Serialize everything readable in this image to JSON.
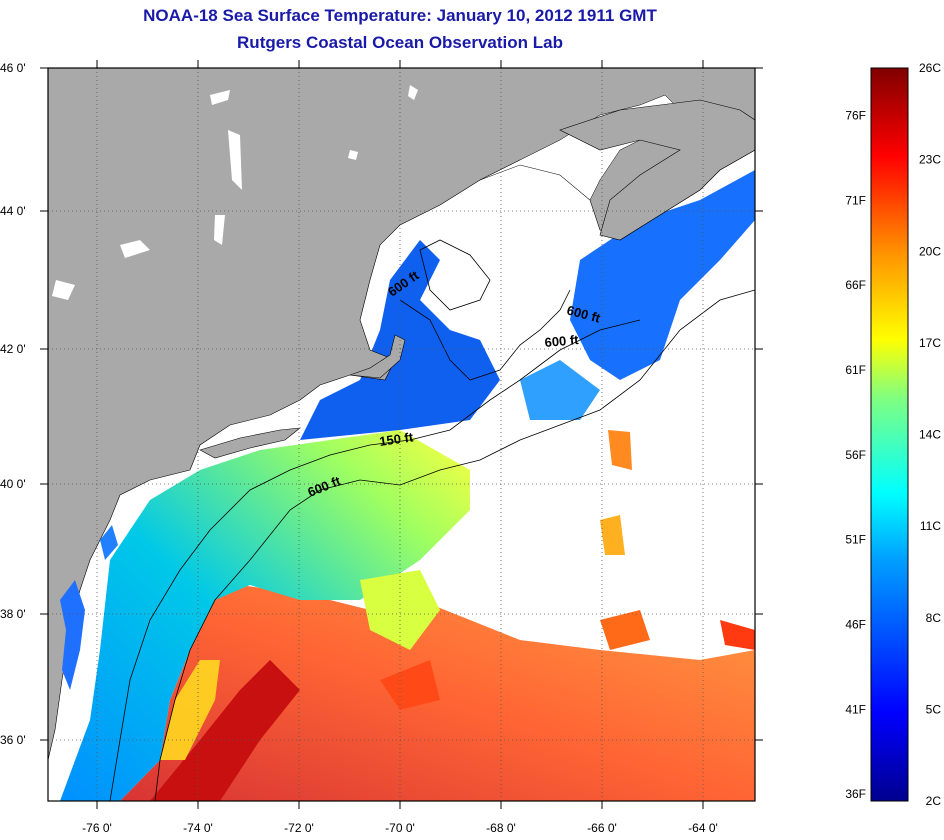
{
  "title": "NOAA-18 Sea Surface Temperature:  January 10, 2012 1911 GMT",
  "subtitle": "Rutgers Coastal Ocean Observation Lab",
  "latitude_labels": [
    "46 0'",
    "44 0'",
    "42 0'",
    "40 0'",
    "38 0'",
    "36 0'"
  ],
  "longitude_labels": [
    "-76 0'",
    "-74 0'",
    "-72 0'",
    "-70 0'",
    "-68 0'",
    "-66 0'",
    "-64 0'"
  ],
  "contour_labels": [
    {
      "text": "600 ft",
      "depth_ft": 600
    },
    {
      "text": "600 ft",
      "depth_ft": 600
    },
    {
      "text": "600 ft",
      "depth_ft": 600
    },
    {
      "text": "150 ft",
      "depth_ft": 150
    },
    {
      "text": "600 ft",
      "depth_ft": 600
    }
  ],
  "colorbar": {
    "fahrenheit_labels": [
      "76F",
      "71F",
      "66F",
      "61F",
      "56F",
      "51F",
      "46F",
      "41F",
      "36F"
    ],
    "celsius_labels": [
      "26C",
      "23C",
      "20C",
      "17C",
      "14C",
      "11C",
      "8C",
      "5C",
      "2C"
    ],
    "min_c": 2,
    "max_c": 26
  },
  "colors": {
    "title": "#1a1aa8",
    "land": "#a9a9a9",
    "cloud": "#ffffff"
  }
}
